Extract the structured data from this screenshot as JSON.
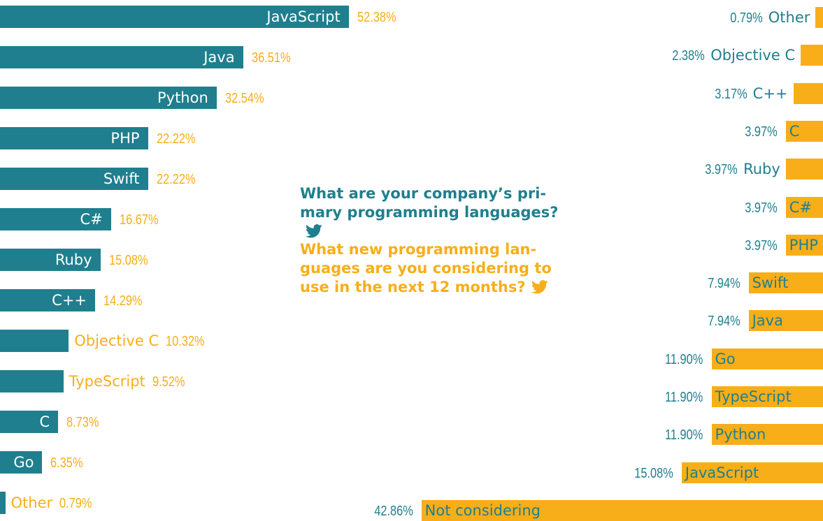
{
  "colors": {
    "teal": "#1f7f8e",
    "amber": "#f8ae19",
    "white": "#ffffff"
  },
  "questions": {
    "current": {
      "text": "What are your company’s pri-\nmary programming languages?",
      "icon": "twitter-bird-icon",
      "color": "#1f7f8e"
    },
    "future": {
      "text": "What new programming lan-\nguages are you considering to\nuse in the next 12 months?",
      "icon": "twitter-bird-icon",
      "color": "#f8ae19"
    }
  },
  "chart_data": [
    {
      "type": "bar",
      "orientation": "horizontal",
      "color": "#1f7f8e",
      "value_unit": "%",
      "categories": [
        "JavaScript",
        "Java",
        "Python",
        "PHP",
        "Swift",
        "C#",
        "Ruby",
        "C++",
        "Objective C",
        "TypeScript",
        "C",
        "Go",
        "Other"
      ],
      "values": [
        52.38,
        36.51,
        32.54,
        22.22,
        22.22,
        16.67,
        15.08,
        14.29,
        10.32,
        9.52,
        8.73,
        6.35,
        0.79
      ],
      "value_labels": [
        "52.38%",
        "36.51%",
        "32.54%",
        "22.22%",
        "22.22%",
        "16.67%",
        "15.08%",
        "14.29%",
        "10.32%",
        "9.52%",
        "8.73%",
        "6.35%",
        "0.79%"
      ]
    },
    {
      "type": "bar",
      "orientation": "horizontal",
      "color": "#f8ae19",
      "value_unit": "%",
      "categories": [
        "Other",
        "Objective C",
        "C++",
        "C",
        "Ruby",
        "C#",
        "PHP",
        "Swift",
        "Java",
        "Go",
        "TypeScript",
        "Python",
        "JavaScript",
        "Not considering"
      ],
      "values": [
        0.79,
        2.38,
        3.17,
        3.97,
        3.97,
        3.97,
        3.97,
        7.94,
        7.94,
        11.9,
        11.9,
        11.9,
        15.08,
        42.86
      ],
      "value_labels": [
        "0.79%",
        "2.38%",
        "3.17%",
        "3.97%",
        "3.97%",
        "3.97%",
        "3.97%",
        "7.94%",
        "7.94%",
        "11.90%",
        "11.90%",
        "11.90%",
        "15.08%",
        "42.86%"
      ]
    }
  ]
}
